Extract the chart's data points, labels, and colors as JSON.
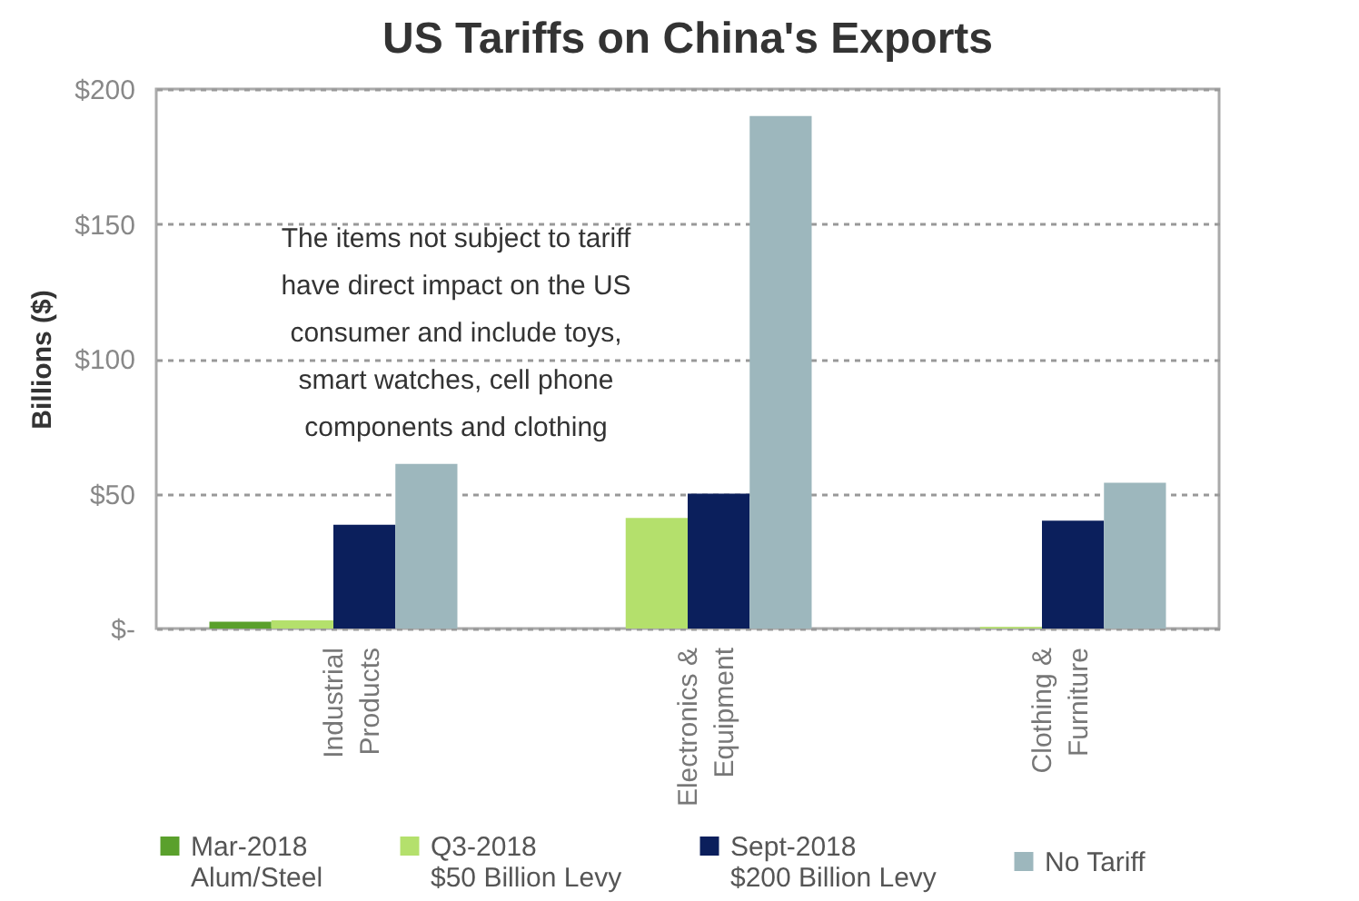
{
  "chart_data": {
    "type": "bar",
    "title": "US Tariffs on China's Exports",
    "ylabel": "Billions ($)",
    "categories": [
      "Industrial\nProducts",
      "Electronics &\nEquipment",
      "Clothing &\nFurniture"
    ],
    "series": [
      {
        "name": "Mar-2018\nAlum/Steel",
        "color": "#5aa02c",
        "values": [
          2.5,
          0,
          0
        ]
      },
      {
        "name": "Q3-2018\n$50 Billion Levy",
        "color": "#b4e06c",
        "values": [
          3,
          41,
          0.6
        ]
      },
      {
        "name": "Sept-2018\n$200 Billion Levy",
        "color": "#0b1f5c",
        "values": [
          38.5,
          50,
          40
        ]
      },
      {
        "name": "No Tariff",
        "color": "#9db7bd",
        "values": [
          61,
          190,
          54
        ]
      }
    ],
    "ylim": [
      0,
      200
    ],
    "yticks": [
      {
        "value": 0,
        "label": "$-"
      },
      {
        "value": 50,
        "label": "$50"
      },
      {
        "value": 100,
        "label": "$100"
      },
      {
        "value": 150,
        "label": "$150"
      },
      {
        "value": 200,
        "label": "$200"
      }
    ],
    "grid": "y",
    "legend": "bottom",
    "annotations": [
      "The items not subject to tariff\nhave direct impact on the US\nconsumer and include toys,\nsmart watches, cell phone\ncomponents and clothing"
    ]
  }
}
